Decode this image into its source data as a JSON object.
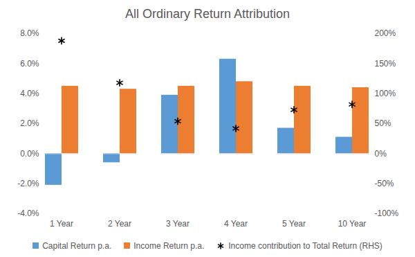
{
  "chart_data": {
    "type": "bar",
    "title": "All Ordinary Return Attribution",
    "categories": [
      "1 Year",
      "2 Year",
      "3 Year",
      "4 Year",
      "5 Year",
      "10 Year"
    ],
    "series": [
      {
        "name": "Capital Return p.a.",
        "type": "bar",
        "color": "#5b9bd5",
        "values": [
          -2.1,
          -0.6,
          3.9,
          6.3,
          1.7,
          1.1
        ]
      },
      {
        "name": "Income Return p.a.",
        "type": "bar",
        "color": "#ed7d31",
        "values": [
          4.5,
          4.3,
          4.5,
          4.8,
          4.5,
          4.4
        ]
      },
      {
        "name": "Income contribution to Total Return (RHS)",
        "type": "scatter",
        "axis": "y2",
        "marker": "asterisk",
        "color": "#000000",
        "values": [
          188,
          118,
          54,
          42,
          73,
          82
        ]
      }
    ],
    "ylim": [
      -4,
      8
    ],
    "yticks": [
      {
        "value": -4,
        "label": "-4.0%"
      },
      {
        "value": -2,
        "label": "-2.0%"
      },
      {
        "value": 0,
        "label": "0.0%"
      },
      {
        "value": 2,
        "label": "2.0%"
      },
      {
        "value": 4,
        "label": "4.0%"
      },
      {
        "value": 6,
        "label": "6.0%"
      },
      {
        "value": 8,
        "label": "8.0%"
      }
    ],
    "y2lim": [
      -100,
      200
    ],
    "y2ticks": [
      {
        "value": -100,
        "label": "-100%"
      },
      {
        "value": -50,
        "label": "-50%"
      },
      {
        "value": 0,
        "label": "0%"
      },
      {
        "value": 50,
        "label": "50%"
      },
      {
        "value": 100,
        "label": "100%"
      },
      {
        "value": 150,
        "label": "150%"
      },
      {
        "value": 200,
        "label": "200%"
      }
    ],
    "grid": false,
    "legend": "bottom"
  }
}
